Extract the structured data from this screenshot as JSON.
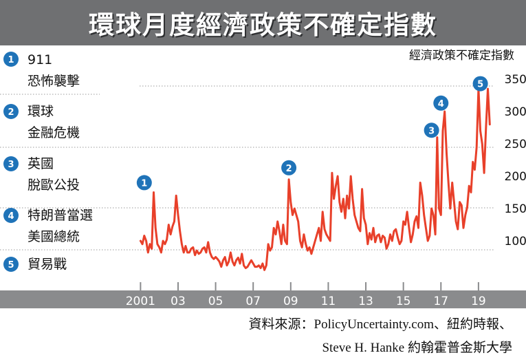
{
  "title": "環球月度經濟政策不確定指數",
  "events": [
    {
      "num": "1",
      "lines": [
        "911",
        "恐怖襲擊"
      ]
    },
    {
      "num": "2",
      "lines": [
        "環球",
        "金融危機"
      ]
    },
    {
      "num": "3",
      "lines": [
        "英國",
        "脫歐公投"
      ]
    },
    {
      "num": "4",
      "lines": [
        "特朗普當選",
        "美國總統"
      ]
    },
    {
      "num": "5",
      "lines": [
        "貿易戰"
      ]
    }
  ],
  "source": {
    "line1": "資料來源：PolicyUncertainty.com、紐約時報、",
    "line2": "Steve H. Hanke 約翰霍普金斯大學"
  },
  "colors": {
    "title_bg": "#6f7072",
    "line": "#e8402a",
    "marker": "#1f73b8",
    "axis_bar": "#8a8b8d",
    "grid": "#999999"
  },
  "chart_data": {
    "type": "line",
    "title": "環球月度經濟政策不確定指數",
    "ylabel": "經濟政策不確定指數",
    "ylim": [
      50,
      350
    ],
    "yticks": [
      100,
      150,
      200,
      250,
      300,
      350
    ],
    "xlim": [
      2000.95,
      2019.7
    ],
    "xticks": [
      {
        "label": "2001",
        "x": 2001
      },
      {
        "label": "03",
        "x": 2003
      },
      {
        "label": "05",
        "x": 2005
      },
      {
        "label": "07",
        "x": 2007
      },
      {
        "label": "09",
        "x": 2009
      },
      {
        "label": "11",
        "x": 2011
      },
      {
        "label": "13",
        "x": 2013
      },
      {
        "label": "15",
        "x": 2015
      },
      {
        "label": "17",
        "x": 2017
      },
      {
        "label": "19",
        "x": 2019
      }
    ],
    "grid": true,
    "series": [
      {
        "x": [
          2001.0,
          2001.1,
          2001.2,
          2001.3,
          2001.4,
          2001.5,
          2001.6,
          2001.7,
          2001.8,
          2001.9,
          2002.0,
          2002.1,
          2002.2,
          2002.3,
          2002.4,
          2002.5,
          2002.6,
          2002.7,
          2002.8,
          2002.9,
          2003.0,
          2003.1,
          2003.2,
          2003.3,
          2003.4,
          2003.5,
          2003.6,
          2003.7,
          2003.8,
          2003.9,
          2004.0,
          2004.1,
          2004.2,
          2004.3,
          2004.4,
          2004.5,
          2004.6,
          2004.7,
          2004.8,
          2004.9,
          2005.0,
          2005.1,
          2005.2,
          2005.3,
          2005.4,
          2005.5,
          2005.6,
          2005.7,
          2005.8,
          2005.9,
          2006.0,
          2006.1,
          2006.2,
          2006.3,
          2006.4,
          2006.5,
          2006.6,
          2006.7,
          2006.8,
          2006.9,
          2007.0,
          2007.1,
          2007.2,
          2007.3,
          2007.4,
          2007.5,
          2007.6,
          2007.7,
          2007.8,
          2007.9,
          2008.0,
          2008.1,
          2008.2,
          2008.3,
          2008.4,
          2008.5,
          2008.6,
          2008.7,
          2008.8,
          2008.9,
          2009.0,
          2009.1,
          2009.2,
          2009.3,
          2009.4,
          2009.5,
          2009.6,
          2009.7,
          2009.8,
          2009.9,
          2010.0,
          2010.1,
          2010.2,
          2010.3,
          2010.4,
          2010.5,
          2010.6,
          2010.7,
          2010.8,
          2010.9,
          2011.0,
          2011.1,
          2011.2,
          2011.3,
          2011.4,
          2011.5,
          2011.6,
          2011.7,
          2011.8,
          2011.9,
          2012.0,
          2012.1,
          2012.2,
          2012.3,
          2012.4,
          2012.5,
          2012.6,
          2012.7,
          2012.8,
          2012.9,
          2013.0,
          2013.1,
          2013.2,
          2013.3,
          2013.4,
          2013.5,
          2013.6,
          2013.7,
          2013.8,
          2013.9,
          2014.0,
          2014.1,
          2014.2,
          2014.3,
          2014.4,
          2014.5,
          2014.6,
          2014.7,
          2014.8,
          2014.9,
          2015.0,
          2015.1,
          2015.2,
          2015.3,
          2015.4,
          2015.5,
          2015.6,
          2015.7,
          2015.8,
          2015.9,
          2016.0,
          2016.1,
          2016.2,
          2016.3,
          2016.4,
          2016.5,
          2016.6,
          2016.7,
          2016.8,
          2016.9,
          2017.0,
          2017.1,
          2017.2,
          2017.3,
          2017.4,
          2017.5,
          2017.6,
          2017.7,
          2017.8,
          2017.9,
          2018.0,
          2018.1,
          2018.2,
          2018.3,
          2018.4,
          2018.5,
          2018.6,
          2018.7,
          2018.8,
          2018.9,
          2019.0,
          2019.1,
          2019.2,
          2019.3,
          2019.4,
          2019.5,
          2019.6
        ],
        "y": [
          100,
          95,
          108,
          100,
          82,
          95,
          88,
          175,
          120,
          95,
          90,
          82,
          100,
          95,
          102,
          125,
          110,
          122,
          130,
          170,
          140,
          115,
          95,
          82,
          92,
          82,
          82,
          88,
          90,
          78,
          85,
          80,
          82,
          88,
          90,
          82,
          98,
          82,
          75,
          72,
          75,
          72,
          68,
          60,
          70,
          75,
          62,
          68,
          82,
          68,
          62,
          70,
          74,
          65,
          80,
          62,
          58,
          60,
          65,
          70,
          65,
          60,
          60,
          62,
          58,
          65,
          55,
          62,
          95,
          85,
          90,
          120,
          110,
          130,
          115,
          95,
          125,
          100,
          95,
          195,
          160,
          140,
          150,
          140,
          130,
          100,
          90,
          110,
          95,
          85,
          90,
          80,
          90,
          100,
          110,
          120,
          100,
          145,
          118,
          110,
          105,
          100,
          205,
          165,
          185,
          200,
          160,
          145,
          165,
          135,
          170,
          150,
          200,
          165,
          140,
          130,
          120,
          115,
          180,
          135,
          125,
          95,
          112,
          102,
          120,
          98,
          108,
          110,
          98,
          108,
          105,
          88,
          95,
          110,
          100,
          115,
          118,
          105,
          95,
          100,
          130,
          125,
          145,
          120,
          98,
          110,
          130,
          138,
          120,
          190,
          170,
          140,
          120,
          100,
          108,
          150,
          140,
          110,
          260,
          150,
          140,
          270,
          300,
          235,
          190,
          150,
          190,
          160,
          130,
          118,
          160,
          155,
          120,
          140,
          152,
          185,
          175,
          222,
          210,
          245,
          335,
          270,
          250,
          205,
          275,
          335,
          280
        ],
        "color": "#e8402a"
      }
    ],
    "annotations": [
      {
        "label": "1",
        "x": 2001.2,
        "y": 190
      },
      {
        "label": "2",
        "x": 2008.9,
        "y": 213
      },
      {
        "label": "3",
        "x": 2016.5,
        "y": 271
      },
      {
        "label": "4",
        "x": 2017.0,
        "y": 313
      },
      {
        "label": "5",
        "x": 2019.1,
        "y": 343
      }
    ]
  }
}
